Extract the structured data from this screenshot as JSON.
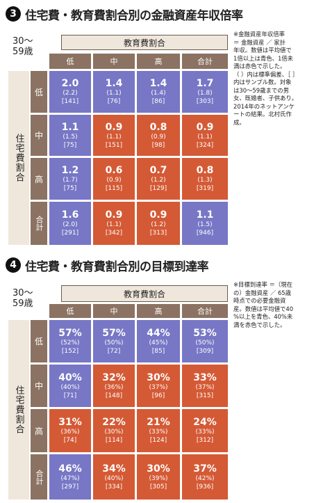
{
  "colors": {
    "blue": "#7777c6",
    "red": "#d45a35",
    "header": "#8b7262",
    "label_bg": "#efe7dc"
  },
  "chart_data": [
    {
      "type": "table",
      "number": "3",
      "title": "住宅費・教育費割合別の金融資産年収倍率",
      "age_line1": "30～",
      "age_line2": "59歳",
      "col_group": "教育費割合",
      "row_group": "住宅費割合",
      "columns": [
        "低",
        "中",
        "高",
        "合計"
      ],
      "rows": [
        {
          "label": "低",
          "cells": [
            {
              "value": "2.0",
              "sd": "(2.2)",
              "n": "[141]",
              "color": "blue"
            },
            {
              "value": "1.4",
              "sd": "(1.1)",
              "n": "[76]",
              "color": "blue"
            },
            {
              "value": "1.4",
              "sd": "(1.4)",
              "n": "[86]",
              "color": "blue"
            },
            {
              "value": "1.7",
              "sd": "(1.8)",
              "n": "[303]",
              "color": "blue"
            }
          ]
        },
        {
          "label": "中",
          "cells": [
            {
              "value": "1.1",
              "sd": "(1.5)",
              "n": "[75]",
              "color": "blue"
            },
            {
              "value": "0.9",
              "sd": "(1.1)",
              "n": "[151]",
              "color": "red"
            },
            {
              "value": "0.8",
              "sd": "(0.9)",
              "n": "[98]",
              "color": "red"
            },
            {
              "value": "0.9",
              "sd": "(1.1)",
              "n": "[324]",
              "color": "red"
            }
          ]
        },
        {
          "label": "高",
          "cells": [
            {
              "value": "1.2",
              "sd": "(1.7)",
              "n": "[75]",
              "color": "blue"
            },
            {
              "value": "0.6",
              "sd": "(0.9)",
              "n": "[115]",
              "color": "red"
            },
            {
              "value": "0.7",
              "sd": "(1.2)",
              "n": "[129]",
              "color": "red"
            },
            {
              "value": "0.8",
              "sd": "(1.3)",
              "n": "[319]",
              "color": "red"
            }
          ]
        },
        {
          "label": "合計",
          "cells": [
            {
              "value": "1.6",
              "sd": "(2.0)",
              "n": "[291]",
              "color": "blue"
            },
            {
              "value": "0.9",
              "sd": "(1.1)",
              "n": "[342]",
              "color": "red"
            },
            {
              "value": "0.9",
              "sd": "(1.2)",
              "n": "[313]",
              "color": "red"
            },
            {
              "value": "1.1",
              "sd": "(1.5)",
              "n": "[946]",
              "color": "blue"
            }
          ]
        }
      ],
      "note_lines": [
        "※金融資産年収倍率",
        "＝ 金融資産 ／ 家計",
        "年収。数値は平均値で",
        "1倍以上は青色、1倍未",
        "満は赤色で示した。",
        "（ ）内は標準偏差、［ ］",
        "内はサンプル数。対象",
        "は30～59歳までの男",
        "女、既婚者、子供あり。",
        "2014年のネットアンケ",
        "ートの結果。北村氏作",
        "成。"
      ]
    },
    {
      "type": "table",
      "number": "4",
      "title": "住宅費・教育費割合別の目標到達率",
      "age_line1": "30～",
      "age_line2": "59歳",
      "col_group": "教育費割合",
      "row_group": "住宅費割合",
      "columns": [
        "低",
        "中",
        "高",
        "合計"
      ],
      "rows": [
        {
          "label": "低",
          "cells": [
            {
              "value": "57%",
              "sd": "(52%)",
              "n": "[152]",
              "color": "blue"
            },
            {
              "value": "57%",
              "sd": "(50%)",
              "n": "[72]",
              "color": "blue"
            },
            {
              "value": "44%",
              "sd": "(45%)",
              "n": "[85]",
              "color": "blue"
            },
            {
              "value": "53%",
              "sd": "(50%)",
              "n": "[309]",
              "color": "blue"
            }
          ]
        },
        {
          "label": "中",
          "cells": [
            {
              "value": "40%",
              "sd": "(40%)",
              "n": "[71]",
              "color": "blue"
            },
            {
              "value": "32%",
              "sd": "(36%)",
              "n": "[148]",
              "color": "red"
            },
            {
              "value": "30%",
              "sd": "(37%)",
              "n": "[96]",
              "color": "red"
            },
            {
              "value": "33%",
              "sd": "(37%)",
              "n": "[315]",
              "color": "red"
            }
          ]
        },
        {
          "label": "高",
          "cells": [
            {
              "value": "31%",
              "sd": "(36%)",
              "n": "[74]",
              "color": "red"
            },
            {
              "value": "22%",
              "sd": "(30%)",
              "n": "[114]",
              "color": "red"
            },
            {
              "value": "21%",
              "sd": "(33%)",
              "n": "[124]",
              "color": "red"
            },
            {
              "value": "24%",
              "sd": "(33%)",
              "n": "[312]",
              "color": "red"
            }
          ]
        },
        {
          "label": "合計",
          "cells": [
            {
              "value": "46%",
              "sd": "(47%)",
              "n": "[297]",
              "color": "blue"
            },
            {
              "value": "34%",
              "sd": "(40%)",
              "n": "[334]",
              "color": "red"
            },
            {
              "value": "30%",
              "sd": "(39%)",
              "n": "[305]",
              "color": "red"
            },
            {
              "value": "37%",
              "sd": "(42%)",
              "n": "[936]",
              "color": "red"
            }
          ]
        }
      ],
      "note_lines": [
        "※目標到達率 ＝（現在",
        "の）金融資産 ／ 65歳",
        "時点での必要金融資",
        "産。数値は平均値で40",
        "%以上を青色、40%未",
        "満を赤色で示した。"
      ]
    }
  ]
}
